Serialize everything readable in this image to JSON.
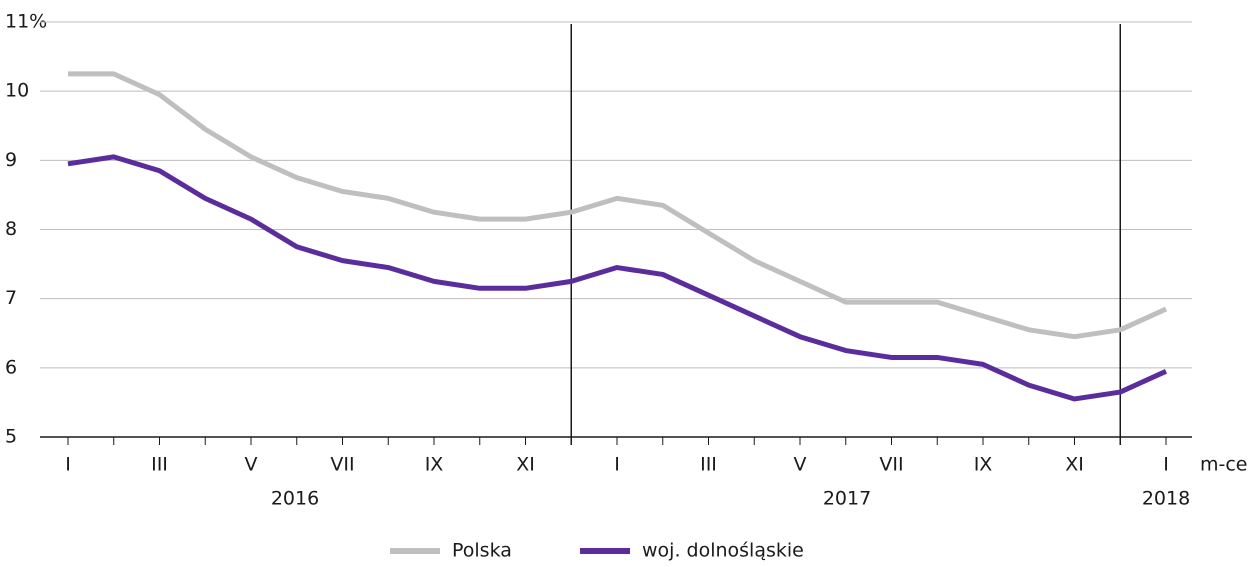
{
  "chart_data": {
    "type": "line",
    "categories": [
      "I",
      null,
      "III",
      null,
      "V",
      null,
      "VII",
      null,
      "IX",
      null,
      "XI",
      null,
      "I",
      null,
      "III",
      null,
      "V",
      null,
      "VII",
      null,
      "IX",
      null,
      "XI",
      null,
      "I"
    ],
    "year_labels": [
      "2016",
      "2017",
      "2018"
    ],
    "x_label": "m-ce",
    "series": [
      {
        "name": "Polska",
        "color": "#bfbfbf",
        "values": [
          10.25,
          10.25,
          9.95,
          9.45,
          9.05,
          8.75,
          8.55,
          8.45,
          8.25,
          8.15,
          8.15,
          8.25,
          8.45,
          8.35,
          7.95,
          7.55,
          7.25,
          6.95,
          6.95,
          6.95,
          6.75,
          6.55,
          6.45,
          6.55,
          6.85
        ]
      },
      {
        "name": "woj. dolnośląskie",
        "color": "#5b2d9c",
        "values": [
          8.95,
          9.05,
          8.85,
          8.45,
          8.15,
          7.75,
          7.55,
          7.45,
          7.25,
          7.15,
          7.15,
          7.25,
          7.45,
          7.35,
          7.05,
          6.75,
          6.45,
          6.25,
          6.15,
          6.15,
          6.05,
          5.75,
          5.55,
          5.65,
          5.95
        ]
      }
    ],
    "ylim": [
      5,
      11
    ],
    "yticks": [
      5,
      6,
      7,
      8,
      9,
      10,
      {
        "value": 11,
        "label": "11%"
      }
    ],
    "grid": true,
    "legend": "bottom"
  }
}
